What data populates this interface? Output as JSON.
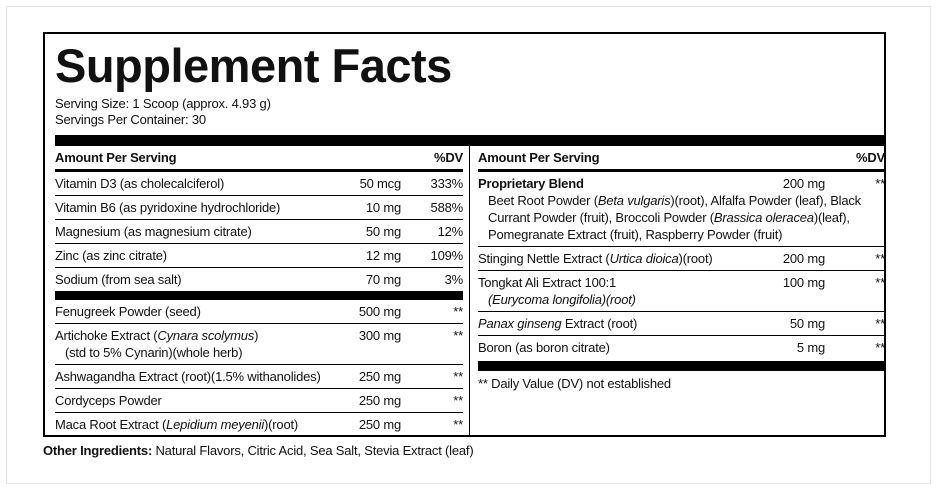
{
  "title": "Supplement Facts",
  "serving_size": "Serving Size: 1 Scoop (approx. 4.93 g)",
  "servings_per_container": "Servings Per Container: 30",
  "left": {
    "header": {
      "amount": "Amount Per Serving",
      "dv": "%DV"
    },
    "rows": [
      {
        "name": [
          [
            "Vitamin D3 (as cholecalciferol)"
          ]
        ],
        "amount": "50 mcg",
        "dv": "333%"
      },
      {
        "name": [
          [
            "Vitamin B6 (as pyridoxine hydrochloride)"
          ]
        ],
        "amount": "10 mg",
        "dv": "588%"
      },
      {
        "name": [
          [
            "Magnesium (as magnesium citrate)"
          ]
        ],
        "amount": "50 mg",
        "dv": "12%"
      },
      {
        "name": [
          [
            "Zinc (as zinc citrate)"
          ]
        ],
        "amount": "12 mg",
        "dv": "109%"
      },
      {
        "name": [
          [
            "Sodium (from sea salt)"
          ]
        ],
        "amount": "70 mg",
        "dv": "3%"
      },
      {
        "name": [
          [
            "Fenugreek Powder (seed)"
          ]
        ],
        "amount": "500 mg",
        "dv": "**"
      },
      {
        "name": [
          [
            "Artichoke Extract (",
            "Cynara scolymus",
            ")"
          ],
          [
            "(std to 5% Cynarin)(whole herb)"
          ]
        ],
        "amount": "300 mg",
        "dv": "**"
      },
      {
        "name": [
          [
            "Ashwagandha Extract (root)(1.5% withanolides)"
          ]
        ],
        "amount": "250 mg",
        "dv": "**"
      },
      {
        "name": [
          [
            "Cordyceps Powder"
          ]
        ],
        "amount": "250 mg",
        "dv": "**"
      },
      {
        "name": [
          [
            "Maca Root Extract (",
            "Lepidium meyenii",
            ")(root)"
          ]
        ],
        "amount": "250 mg",
        "dv": "**"
      }
    ]
  },
  "right": {
    "header": {
      "amount": "Amount Per Serving",
      "dv": "%DV"
    },
    "rows": [
      {
        "name": [
          [
            "Proprietary Blend"
          ],
          [
            "Beet Root Powder (",
            "Beta vulgaris",
            ")(root), Alfalfa Powder (leaf), Black"
          ],
          [
            "Currant Powder (fruit), Broccoli Powder (",
            "Brassica oleracea",
            ")(leaf),"
          ],
          [
            "Pomegranate Extract (fruit), Raspberry Powder (fruit)"
          ]
        ],
        "amount": "200 mg",
        "dv": "**"
      },
      {
        "name": [
          [
            "Stinging Nettle Extract (",
            "Urtica dioica",
            ")(root)"
          ]
        ],
        "amount": "200 mg",
        "dv": "**"
      },
      {
        "name": [
          [
            "Tongkat Ali Extract 100:1"
          ],
          [
            "(Eurycoma longifolia)(root)"
          ]
        ],
        "amount": "100 mg",
        "dv": "**"
      },
      {
        "name": [
          [
            "Panax ginseng",
            " Extract (root)"
          ]
        ],
        "amount": "50 mg",
        "dv": "**"
      },
      {
        "name": [
          [
            "Boron (as boron citrate)"
          ]
        ],
        "amount": "5 mg",
        "dv": "**"
      }
    ]
  },
  "footnote": "** Daily Value (DV) not established",
  "other_ingredients": {
    "label": "Other Ingredients:",
    "text": " Natural Flavors, Citric Acid, Sea Salt, Stevia Extract (leaf)"
  }
}
